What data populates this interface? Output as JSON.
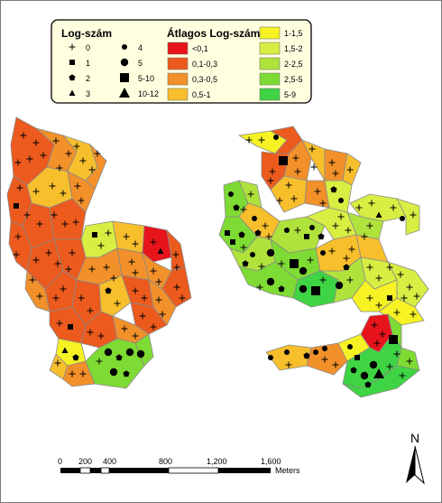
{
  "legend": {
    "count_title": "Log-szám",
    "count_items": [
      {
        "label": "0",
        "symbol": "plus"
      },
      {
        "label": "1",
        "symbol": "square-small"
      },
      {
        "label": "2",
        "symbol": "pentagon"
      },
      {
        "label": "3",
        "symbol": "triangle-small"
      },
      {
        "label": "4",
        "symbol": "circle-small"
      },
      {
        "label": "5",
        "symbol": "circle"
      },
      {
        "label": "5-10",
        "symbol": "square-large"
      },
      {
        "label": "10-12",
        "symbol": "triangle-large"
      }
    ],
    "avg_title": "Átlagos Log-szám",
    "avg_items": [
      {
        "label": "<0,1",
        "color": "#e8141b"
      },
      {
        "label": "0,1-0,3",
        "color": "#ec5a1d"
      },
      {
        "label": "0,3-0,5",
        "color": "#f2902a"
      },
      {
        "label": "0,5-1",
        "color": "#f8bf2c"
      },
      {
        "label": "1-1,5",
        "color": "#f6f224"
      },
      {
        "label": "1,5-2",
        "color": "#d8ee42"
      },
      {
        "label": "2-2,5",
        "color": "#b0e23c"
      },
      {
        "label": "2,5-5",
        "color": "#7edb33"
      },
      {
        "label": "5-9",
        "color": "#3fd443"
      }
    ]
  },
  "scale_bar": {
    "ticks": [
      "0",
      "200",
      "400",
      "800",
      "1,200",
      "1,600"
    ],
    "unit": "Meters"
  },
  "north_arrow": {
    "label": "N"
  }
}
